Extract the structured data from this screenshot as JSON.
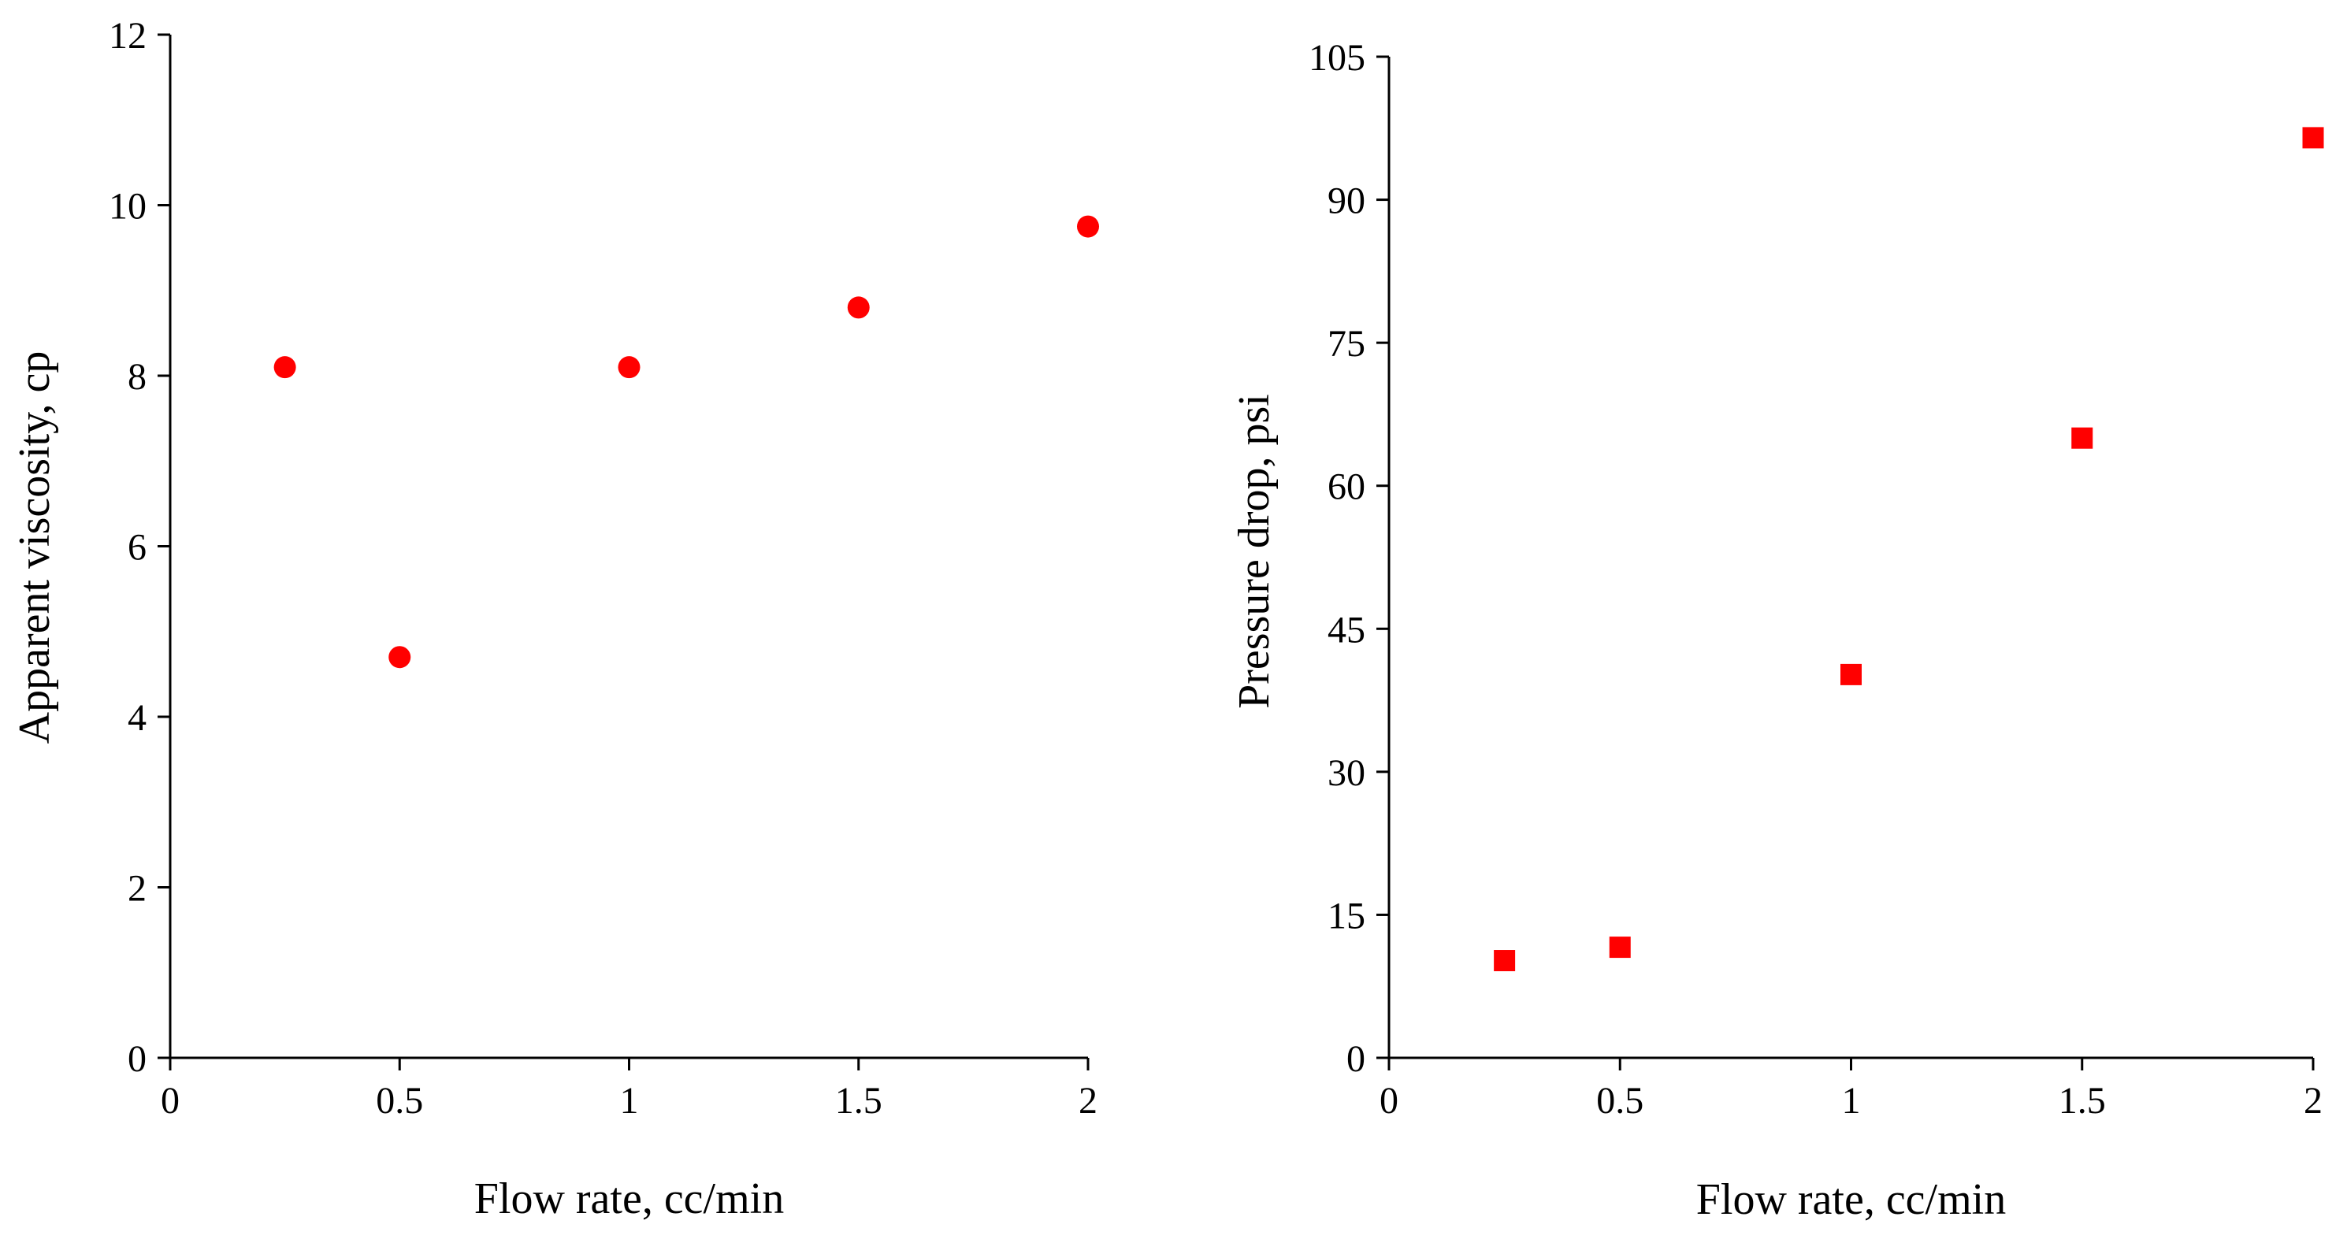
{
  "chart_data": [
    {
      "type": "scatter",
      "title": "",
      "xlabel": "Flow rate, cc/min",
      "ylabel": "Apparent viscosity, cp",
      "xlim": [
        0,
        2
      ],
      "ylim": [
        0,
        12
      ],
      "x_ticks": [
        "0",
        "0.5",
        "1",
        "1.5",
        "2"
      ],
      "y_ticks": [
        "0",
        "2",
        "4",
        "6",
        "8",
        "10",
        "12"
      ],
      "grid": false,
      "legend": "none",
      "marker": "circle",
      "color": "#ff0000",
      "series": [
        {
          "x": [
            0.25,
            0.5,
            1.0,
            1.5,
            2.0
          ],
          "y": [
            8.1,
            4.7,
            8.1,
            8.8,
            9.75
          ]
        }
      ]
    },
    {
      "type": "scatter",
      "title": "",
      "xlabel": "Flow rate, cc/min",
      "ylabel": "Pressure drop, psi",
      "xlim": [
        0,
        2
      ],
      "ylim": [
        0,
        105
      ],
      "x_ticks": [
        "0",
        "0.5",
        "1",
        "1.5",
        "2"
      ],
      "y_ticks": [
        "0",
        "15",
        "30",
        "45",
        "60",
        "75",
        "90",
        "105"
      ],
      "grid": false,
      "legend": "none",
      "marker": "square",
      "color": "#ff0000",
      "series": [
        {
          "x": [
            0.25,
            0.5,
            1.0,
            1.5,
            2.0
          ],
          "y": [
            10.2,
            11.6,
            40.2,
            65.0,
            96.5
          ]
        }
      ]
    }
  ]
}
